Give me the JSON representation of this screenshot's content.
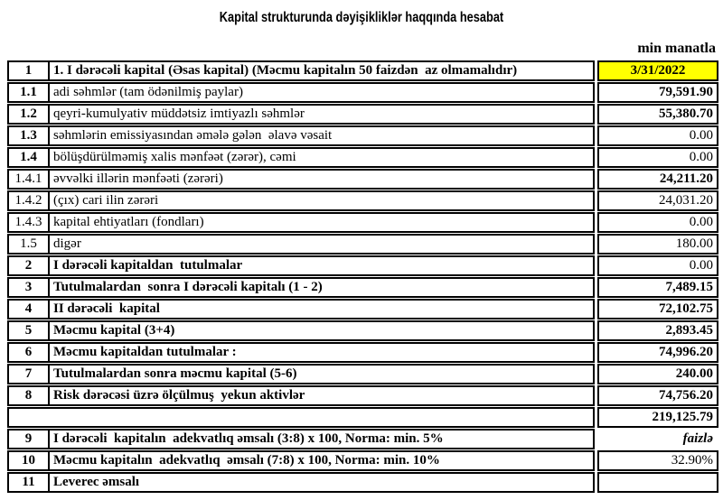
{
  "title": "Kapital strukturunda dəyişikliklər haqqında hesabat",
  "unit_label": "min manatla",
  "colors": {
    "highlight_bg": "#ffff00",
    "border": "#000000",
    "text": "#000000"
  },
  "table": {
    "rows": [
      {
        "num": "1",
        "label": "1. I dərəcəli kapital (Əsas kapital) (Məcmu kapitalın 50 faizdən  az olmamalıdır)",
        "value": "3/31/2022",
        "num_bold": true,
        "label_bold": true,
        "value_bold": true,
        "value_align": "center",
        "highlight": true
      },
      {
        "num": "1.1",
        "label": "adi səhmlər (tam ödənilmiş paylar)",
        "value": "79,591.90",
        "num_bold": true,
        "label_bold": false,
        "value_bold": true
      },
      {
        "num": "1.2",
        "label": "qeyri-kumulyativ müddətsiz imtiyazlı səhmlər",
        "value": "55,380.70",
        "num_bold": true,
        "label_bold": false,
        "value_bold": true
      },
      {
        "num": "1.3",
        "label": "səhmlərin emissiyasından əmələ gələn  əlavə vəsait",
        "value": "0.00",
        "num_bold": true,
        "label_bold": false,
        "value_bold": false
      },
      {
        "num": "1.4",
        "label": "bölüşdürülməmiş xalis mənfəət (zərər), cəmi",
        "value": "0.00",
        "num_bold": true,
        "label_bold": false,
        "value_bold": false
      },
      {
        "num": "1.4.1",
        "label": "əvvəlki illərin mənfəəti (zərəri)",
        "value": "24,211.20",
        "num_bold": false,
        "label_bold": false,
        "value_bold": true
      },
      {
        "num": "1.4.2",
        "label": "(çıx) cari ilin zərəri",
        "value": "24,031.20",
        "num_bold": false,
        "label_bold": false,
        "value_bold": false
      },
      {
        "num": "1.4.3",
        "label": "kapital ehtiyatları (fondları)",
        "value": "0.00",
        "num_bold": false,
        "label_bold": false,
        "value_bold": false
      },
      {
        "num": "1.5",
        "label": "digər",
        "value": "180.00",
        "num_bold": false,
        "label_bold": false,
        "value_bold": false
      },
      {
        "num": "2",
        "label": "I dərəcəli kapitaldan  tutulmalar",
        "value": "0.00",
        "num_bold": true,
        "label_bold": true,
        "value_bold": false
      },
      {
        "num": "3",
        "label": "Tutulmalardan  sonra I dərəcəli kapitalı (1 - 2)",
        "value": "7,489.15",
        "num_bold": true,
        "label_bold": true,
        "value_bold": true
      },
      {
        "num": "4",
        "label": "II dərəcəli  kapital",
        "value": "72,102.75",
        "num_bold": true,
        "label_bold": true,
        "value_bold": true
      },
      {
        "num": "5",
        "label": "Məcmu kapital (3+4)",
        "value": "2,893.45",
        "num_bold": true,
        "label_bold": true,
        "value_bold": true
      },
      {
        "num": "6",
        "label": "Məcmu kapitaldan tutulmalar :",
        "value": "74,996.20",
        "num_bold": true,
        "label_bold": true,
        "value_bold": true
      },
      {
        "num": "7",
        "label": "Tutulmalardan sonra məcmu kapital (5-6)",
        "value": "240.00",
        "num_bold": true,
        "label_bold": true,
        "value_bold": true
      },
      {
        "num": "8",
        "label": "Risk dərəcəsi üzrə ölçülmuş  yekun aktivlər",
        "value": "74,756.20",
        "num_bold": true,
        "label_bold": true,
        "value_bold": true
      },
      {
        "merged": true,
        "label": "",
        "value": "219,125.79",
        "value_bold": true
      },
      {
        "num": "9",
        "label": "I dərəcəli  kapitalın  adekvatlıq əmsalı (3:8) x 100, Norma: min. 5%",
        "value": "faizlə",
        "num_bold": true,
        "label_bold": true,
        "value_bold": true,
        "value_italic": true,
        "value_unboxed": true
      },
      {
        "num": "10",
        "label": "Məcmu kapitalın  adekvatlıq  əmsalı (7:8) x 100, Norma: min. 10%",
        "value": "32.90%",
        "num_bold": true,
        "label_bold": true,
        "value_bold": false
      },
      {
        "num": "11",
        "label": "Leverec əmsalı",
        "value": "",
        "num_bold": true,
        "label_bold": true,
        "value_bold": false
      }
    ]
  }
}
